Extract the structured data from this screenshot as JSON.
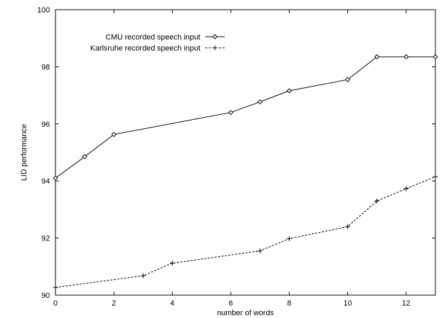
{
  "chart_data": {
    "type": "line",
    "title": "",
    "xlabel": "number of words",
    "ylabel": "LID performance",
    "xlim": [
      0,
      13
    ],
    "ylim": [
      90,
      100
    ],
    "xticks": [
      "0",
      "2",
      "4",
      "6",
      "8",
      "10",
      "12"
    ],
    "yticks": [
      "90",
      "92",
      "94",
      "96",
      "98",
      "100"
    ],
    "grid": false,
    "legend_position": "top-left",
    "series": [
      {
        "name": "CMU recorded speech input",
        "marker": "diamond",
        "line_style": "solid",
        "color": "#000000",
        "points": [
          [
            0,
            94.1
          ],
          [
            1,
            94.85
          ],
          [
            2,
            95.63
          ],
          [
            6,
            96.4
          ],
          [
            7,
            96.77
          ],
          [
            8,
            97.16
          ],
          [
            10,
            97.55
          ],
          [
            11,
            98.35
          ],
          [
            12,
            98.35
          ],
          [
            13,
            98.35
          ]
        ]
      },
      {
        "name": "Karlsruhe recorded speech input",
        "marker": "plus",
        "line_style": "dashed",
        "color": "#000000",
        "points": [
          [
            0,
            90.27
          ],
          [
            3,
            90.68
          ],
          [
            4,
            91.12
          ],
          [
            7,
            91.55
          ],
          [
            8,
            91.98
          ],
          [
            10,
            92.4
          ],
          [
            11,
            93.3
          ],
          [
            12,
            93.73
          ],
          [
            13,
            94.15
          ]
        ]
      }
    ]
  }
}
